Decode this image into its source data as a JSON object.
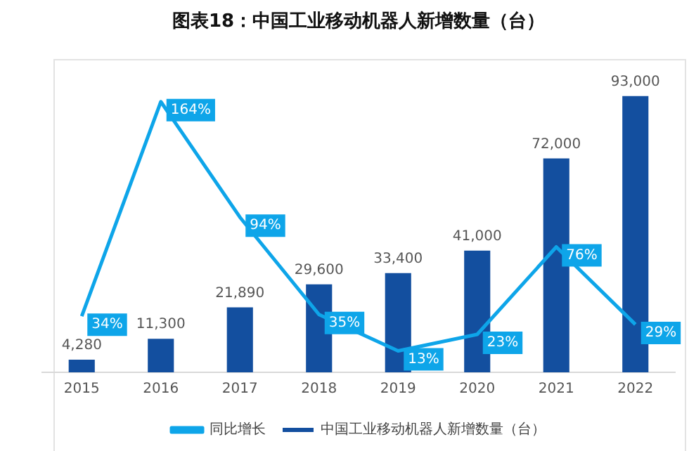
{
  "chart_data": {
    "type": "bar",
    "title": "图表18：中国工业移动机器人新增数量（台）",
    "categories": [
      "2015",
      "2016",
      "2017",
      "2018",
      "2019",
      "2020",
      "2021",
      "2022"
    ],
    "series": [
      {
        "name": "中国工业移动机器人新增数量（台）",
        "color": "#134f9f",
        "values": [
          4280,
          11300,
          21890,
          29600,
          33400,
          41000,
          72000,
          93000
        ],
        "value_labels": [
          "4,280",
          "11,300",
          "21,890",
          "29,600",
          "33,400",
          "41,000",
          "72,000",
          "93,000"
        ]
      },
      {
        "name": "同比增长",
        "type": "line",
        "axis": "y2",
        "color": "#0ea5e9",
        "values": [
          34,
          164,
          94,
          35,
          13,
          23,
          76,
          29
        ],
        "value_labels": [
          "34%",
          "164%",
          "94%",
          "35%",
          "13%",
          "23%",
          "76%",
          "29%"
        ]
      }
    ],
    "data_labels": true,
    "legend": "bottom",
    "grid": false,
    "tick_labels": "x",
    "marker": "none"
  }
}
